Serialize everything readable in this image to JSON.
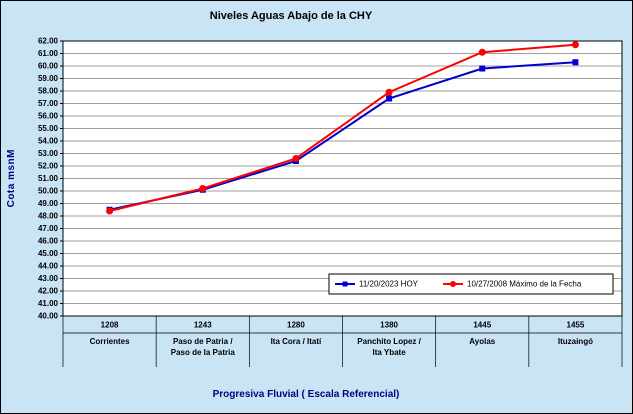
{
  "window": {
    "background": "#C9E4F4",
    "plot_background": "#FFFFFF"
  },
  "chart_data": {
    "type": "line",
    "title": "Niveles Aguas Abajo de la CHY",
    "ylabel": "Cota msnM",
    "xlabel": "Progresiva Fluvial ( Escala Referencial)",
    "ylim": [
      40,
      62
    ],
    "ytick_step": 1,
    "ytick_decimals": 2,
    "grid": true,
    "legend_position": "inside-bottom-right",
    "categories": [
      {
        "code": "1208",
        "name": "Corrientes"
      },
      {
        "code": "1243",
        "name": "Paso de Patria / Paso de la Patria"
      },
      {
        "code": "1280",
        "name": "Ita Cora / Itatí"
      },
      {
        "code": "1380",
        "name": "Panchito Lopez / Ita Ybate"
      },
      {
        "code": "1445",
        "name": "Ayolas"
      },
      {
        "code": "1455",
        "name": "Ituzaingó"
      }
    ],
    "series": [
      {
        "name": "11/20/2023 HOY",
        "color": "#0000CC",
        "marker": "square",
        "values": [
          48.5,
          50.1,
          52.4,
          57.4,
          59.8,
          60.3
        ]
      },
      {
        "name": "10/27/2008 Máximo de la Fecha",
        "color": "#FF0000",
        "marker": "circle",
        "values": [
          48.4,
          50.2,
          52.6,
          57.9,
          61.1,
          61.7
        ]
      }
    ]
  }
}
